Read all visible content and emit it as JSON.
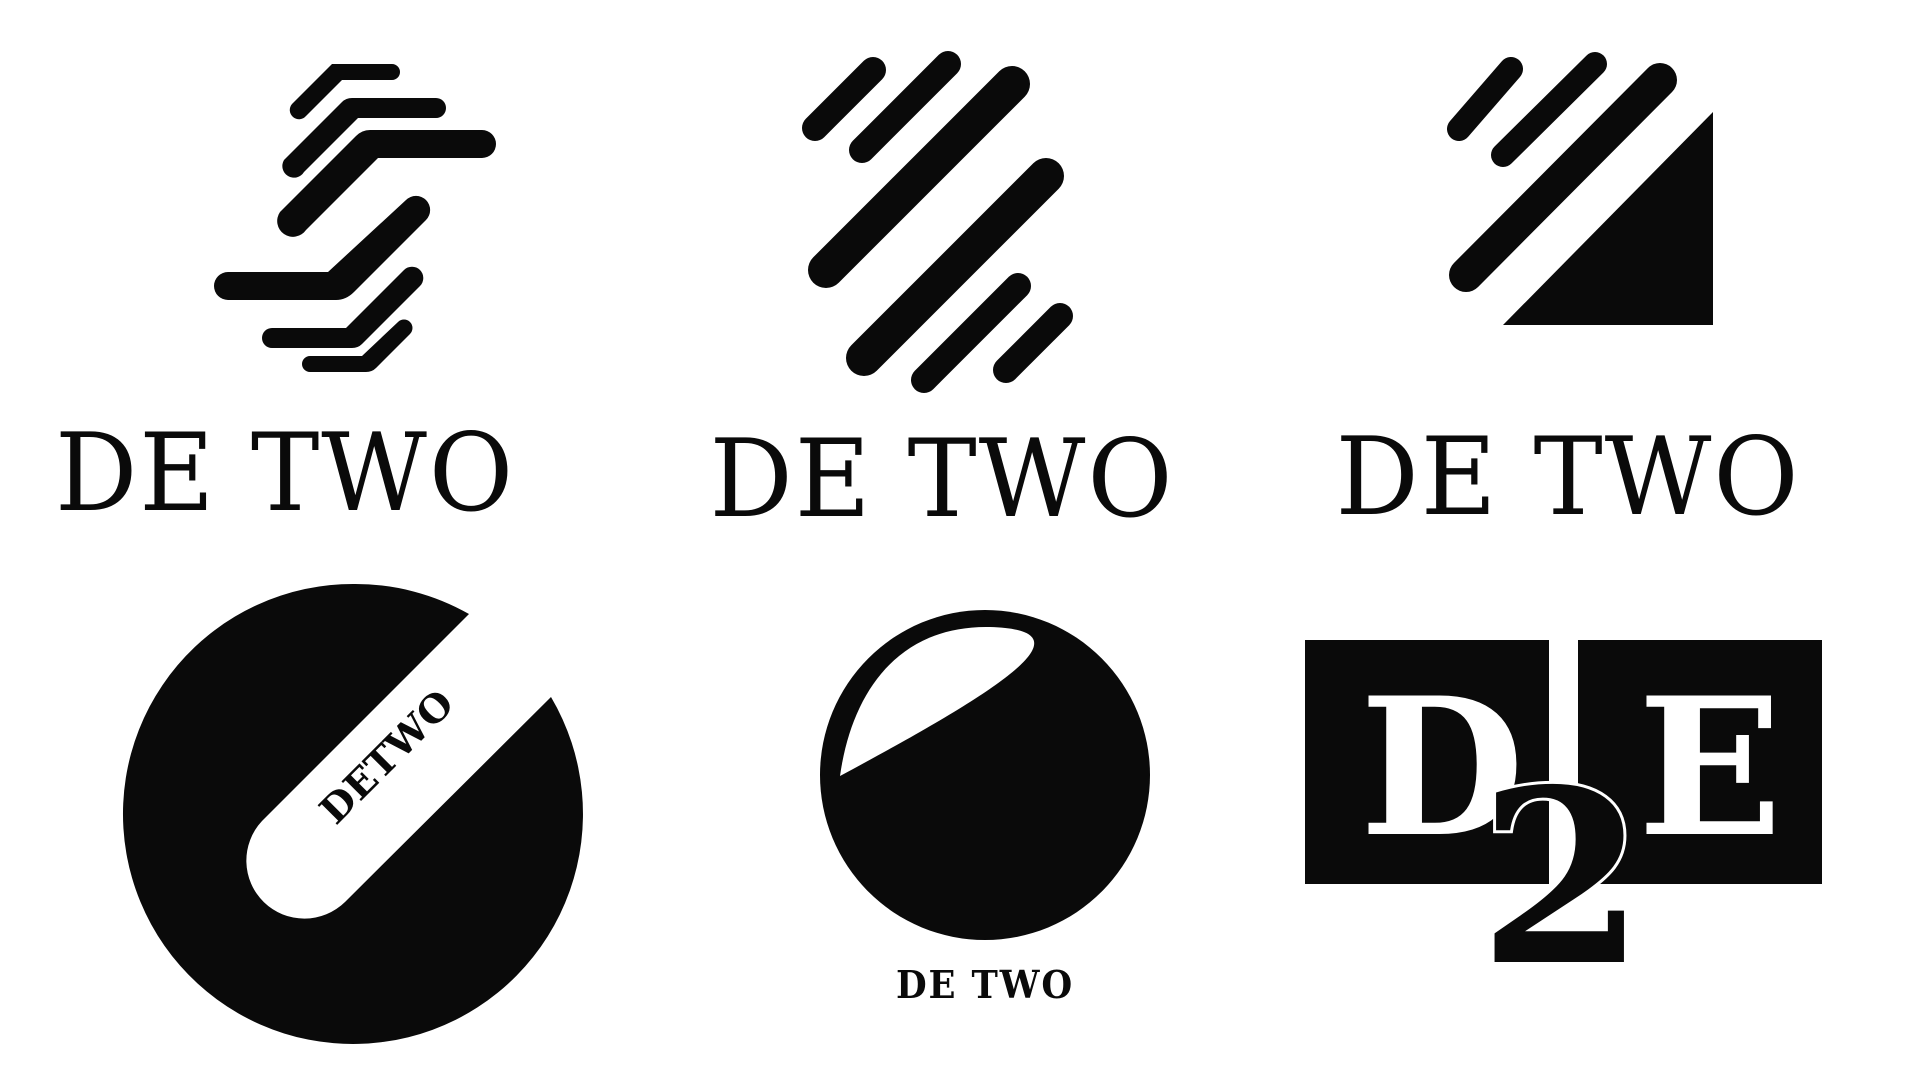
{
  "logos": [
    {
      "id": "logo-1",
      "style": "interlocking-stripes",
      "wordmark": "DE TWO"
    },
    {
      "id": "logo-2",
      "style": "diagonal-stripes",
      "wordmark": "DE TWO"
    },
    {
      "id": "logo-3",
      "style": "stripes-with-triangle",
      "wordmark": "DE TWO"
    },
    {
      "id": "logo-4",
      "style": "circle-with-diagonal-band",
      "wordmark": "DETWO"
    },
    {
      "id": "logo-5",
      "style": "circle-with-crescent",
      "wordmark": "DE TWO"
    },
    {
      "id": "logo-6",
      "style": "d2e-squares",
      "letters": [
        "D",
        "2",
        "E"
      ]
    }
  ],
  "colors": {
    "ink": "#0a0a0a",
    "paper": "#ffffff"
  }
}
